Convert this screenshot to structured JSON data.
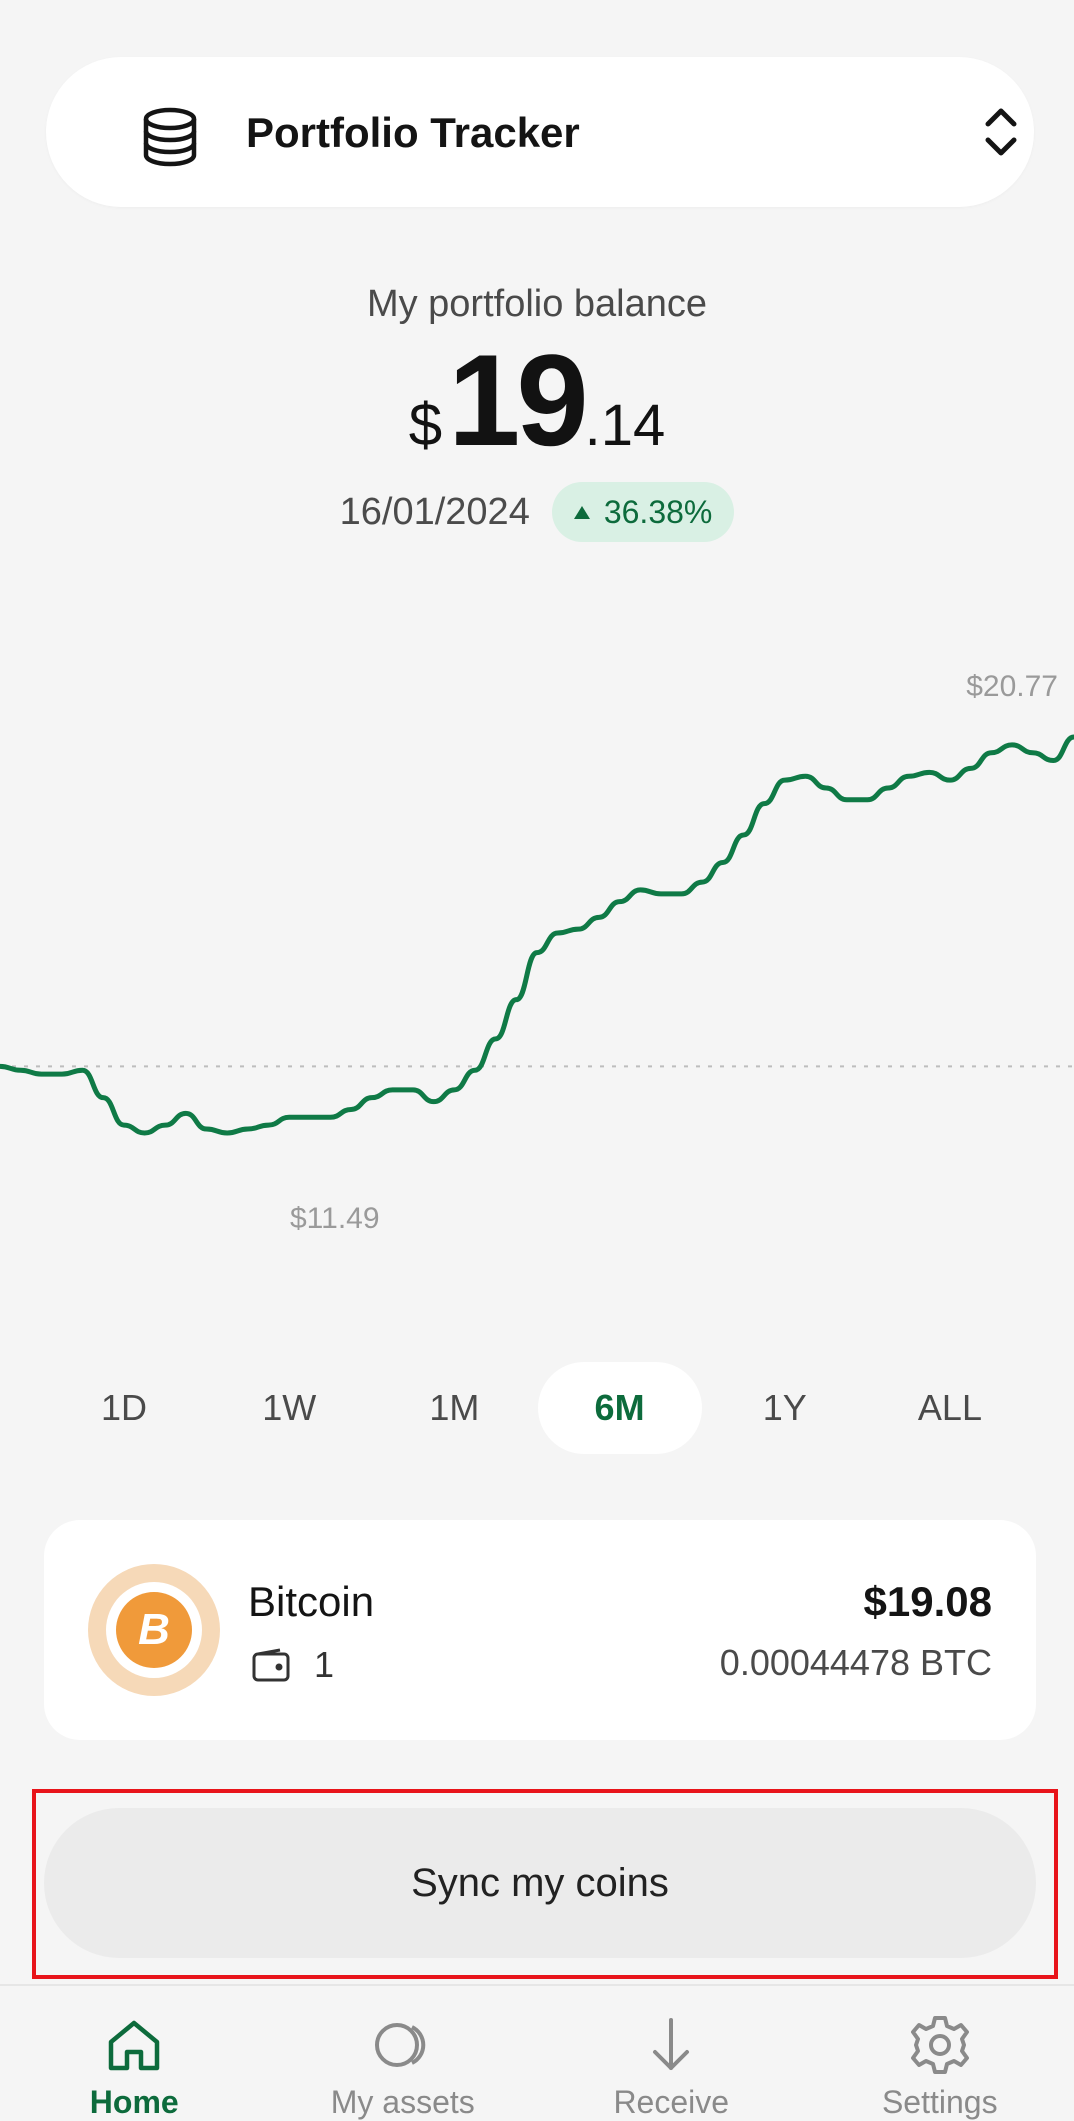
{
  "header": {
    "title": "Portfolio Tracker",
    "icon": "database-icon",
    "switch_icon": "chevron-up-down-icon"
  },
  "balance": {
    "label": "My portfolio balance",
    "currency": "$",
    "integer": "19",
    "decimal": ".14",
    "date": "16/01/2024",
    "change": "36.38%"
  },
  "chart_data": {
    "type": "line",
    "series": [
      {
        "values": [
          14.4,
          14.3,
          14.2,
          14.2,
          14.3,
          13.6,
          12.9,
          12.7,
          12.9,
          13.2,
          12.8,
          12.7,
          12.8,
          12.9,
          13.1,
          13.1,
          13.1,
          13.3,
          13.6,
          13.8,
          13.8,
          13.5,
          13.8,
          14.3,
          15.1,
          16.1,
          17.3,
          17.8,
          17.9,
          18.2,
          18.6,
          18.9,
          18.8,
          18.8,
          19.1,
          19.6,
          20.3,
          21.1,
          21.7,
          21.8,
          21.5,
          21.2,
          21.2,
          21.5,
          21.8,
          21.9,
          21.7,
          22.0,
          22.4,
          22.6,
          22.4,
          22.2,
          22.8
        ]
      }
    ],
    "max_label": "$20.77",
    "min_label": "$11.49",
    "color": "#0f7a46",
    "reference_line": "dashed"
  },
  "periods": [
    {
      "label": "1D",
      "active": false
    },
    {
      "label": "1W",
      "active": false
    },
    {
      "label": "1M",
      "active": false
    },
    {
      "label": "6M",
      "active": true
    },
    {
      "label": "1Y",
      "active": false
    },
    {
      "label": "ALL",
      "active": false
    }
  ],
  "asset": {
    "name": "Bitcoin",
    "symbol_glyph": "B",
    "wallet_count": "1",
    "value": "$19.08",
    "amount": "0.00044478 BTC",
    "icon": "bitcoin-icon"
  },
  "sync_button": {
    "label": "Sync my coins"
  },
  "nav": [
    {
      "label": "Home",
      "icon": "home-icon",
      "active": true
    },
    {
      "label": "My assets",
      "icon": "assets-icon",
      "active": false
    },
    {
      "label": "Receive",
      "icon": "receive-arrow-icon",
      "active": false
    },
    {
      "label": "Settings",
      "icon": "gear-icon",
      "active": false
    }
  ],
  "colors": {
    "accent": "#0d6b3c",
    "badge_bg": "#d9f0e4",
    "bitcoin": "#f09a3a",
    "highlight": "#e8141a"
  }
}
